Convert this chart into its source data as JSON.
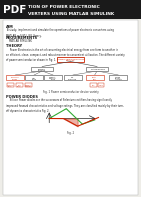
{
  "title_line1": "TION OF POWER ELECTRONIC",
  "title_line2": "VERTERS USING MATLAB SIMULINK",
  "bg_color": "#eeede8",
  "header_bg": "#1a1a1a",
  "pdf_label": "PDF",
  "header_text_color": "#ffffff",
  "body_text_color": "#1a1a1a",
  "red_color": "#cc2200",
  "green_color": "#33aa33",
  "box_red": "#cc2200",
  "section_aim": "AIM",
  "aim_text": "To study, implement and simulate the operations of power electronic converters using\nMATLAB or SIMULINK library.",
  "section_req": "REQUIREMENTS",
  "req_text": "MATLAB SIMULINK",
  "section_theory": "THEORY",
  "theory_text": "     Power Electronics is the art of converting electrical energy from one form to another in\nan efficient, clean, compact, and robust manner to convenient utilization. The different variety\nof power semiconductor shown in Fig. 1.",
  "fig1_caption": "Fig. 1 Power semiconductor device variety",
  "section_power": "POWER DIODES",
  "power_text": "     Silicon Power diodes are the successors of Selenium rectifiers having significantly\nimproved forward characteristics and voltage ratings. They are classified mainly by their turn-\noff dynamics characteristics Fig. 2.",
  "fig2_caption": "Fig. 2"
}
